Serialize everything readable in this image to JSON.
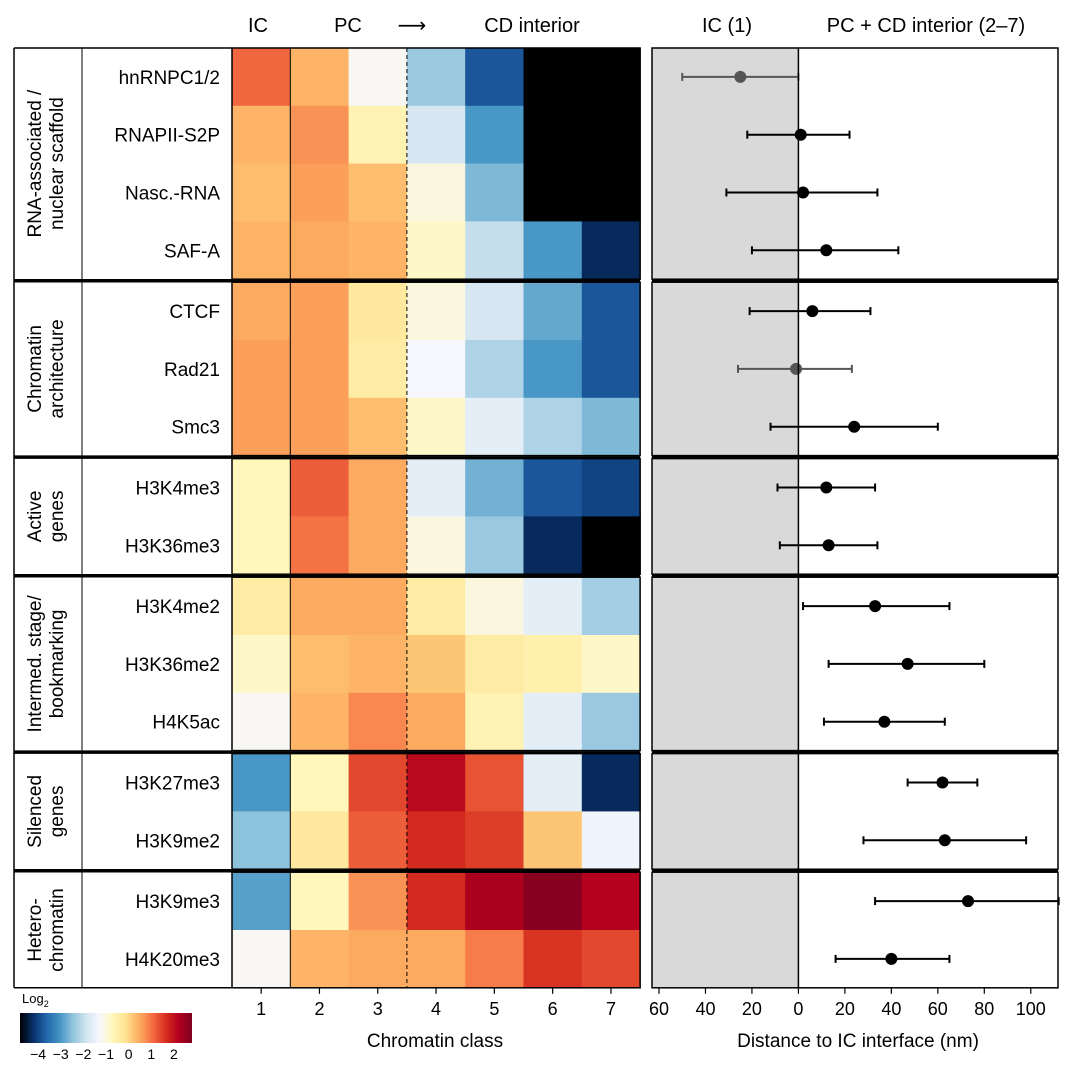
{
  "colors": {
    "scale": [
      "#000000",
      "#08306b",
      "#2166ac",
      "#4393c3",
      "#92c5de",
      "#d1e5f0",
      "#f7f7ff",
      "#fff7bc",
      "#fee391",
      "#fdae61",
      "#f46d43",
      "#d7301f",
      "#b2001e",
      "#7f0020"
    ],
    "panel_shade": "#d9d9d9",
    "point_dark": "#000000",
    "point_grey": "#555555"
  },
  "headers": {
    "ic": "IC",
    "pc": "PC",
    "arrow": "⟶",
    "cd": "CD interior",
    "right_ic": "IC (1)",
    "right_pc": "PC + CD interior (2–7)"
  },
  "legend": {
    "title_base": "Log",
    "title_sub": "2",
    "ticks": [
      "−4",
      "−3",
      "−2",
      "−1",
      "0",
      "1",
      "2"
    ],
    "tick_values": [
      -4,
      -3,
      -2,
      -1,
      0,
      1,
      2
    ],
    "min": -4.8,
    "max": 2.8
  },
  "chart_data": [
    {
      "type": "heatmap",
      "xlabel": "Chromatin class",
      "x_categories": [
        "1",
        "2",
        "3",
        "4",
        "5",
        "6",
        "7"
      ],
      "groups": [
        {
          "name_lines": [
            "RNA-associated /",
            "nuclear scaffold"
          ],
          "rows": [
            {
              "label": "hnRNPC1/2",
              "values": [
                1.1,
                0.4,
                -1.2,
                -2.4,
                -3.8,
                -5.0,
                -5.0
              ]
            },
            {
              "label": "RNAPII-S2P",
              "values": [
                0.4,
                0.7,
                -0.6,
                -1.8,
                -3.0,
                -4.8,
                -5.0
              ]
            },
            {
              "label": "Nasc.-RNA",
              "values": [
                0.3,
                0.6,
                0.3,
                -1.0,
                -2.6,
                -5.0,
                -5.0
              ]
            },
            {
              "label": "SAF-A",
              "values": [
                0.4,
                0.5,
                0.4,
                -0.8,
                -2.0,
                -3.0,
                -4.3
              ]
            }
          ]
        },
        {
          "name_lines": [
            "Chromatin",
            "architecture"
          ],
          "rows": [
            {
              "label": "CTCF",
              "values": [
                0.5,
                0.6,
                -0.3,
                -1.0,
                -1.8,
                -2.8,
                -3.8
              ]
            },
            {
              "label": "Rad21",
              "values": [
                0.6,
                0.6,
                -0.4,
                -1.3,
                -2.2,
                -3.0,
                -3.8
              ]
            },
            {
              "label": "Smc3",
              "values": [
                0.6,
                0.6,
                0.3,
                -0.8,
                -1.6,
                -2.2,
                -2.6
              ]
            }
          ]
        },
        {
          "name_lines": [
            "Active",
            "genes"
          ],
          "rows": [
            {
              "label": "H3K4me3",
              "values": [
                -0.7,
                1.2,
                0.5,
                -1.6,
                -2.7,
                -3.8,
                -4.0
              ]
            },
            {
              "label": "H3K36me3",
              "values": [
                -0.7,
                1.0,
                0.5,
                -1.0,
                -2.4,
                -4.3,
                -5.0
              ]
            }
          ]
        },
        {
          "name_lines": [
            "Intermed. stage/",
            "bookmarking"
          ],
          "rows": [
            {
              "label": "H3K4me2",
              "values": [
                -0.4,
                0.5,
                0.5,
                -0.4,
                -1.0,
                -1.6,
                -2.3
              ]
            },
            {
              "label": "H3K36me2",
              "values": [
                -0.8,
                0.3,
                0.4,
                0.2,
                -0.4,
                -0.5,
                -0.8
              ]
            },
            {
              "label": "H4K5ac",
              "values": [
                -1.2,
                0.4,
                0.8,
                0.5,
                -0.6,
                -1.6,
                -2.4
              ]
            }
          ]
        },
        {
          "name_lines": [
            "Silenced",
            "genes"
          ],
          "rows": [
            {
              "label": "H3K27me3",
              "values": [
                -3.0,
                -0.7,
                1.4,
                2.1,
                1.3,
                -1.6,
                -4.3
              ]
            },
            {
              "label": "H3K9me2",
              "values": [
                -2.5,
                -0.3,
                1.2,
                1.7,
                1.5,
                0.2,
                -1.4
              ]
            }
          ]
        },
        {
          "name_lines": [
            "Hetero-",
            "chromatin"
          ],
          "rows": [
            {
              "label": "H3K9me3",
              "values": [
                -2.9,
                -0.7,
                0.7,
                1.7,
                2.3,
                2.7,
                2.2
              ]
            },
            {
              "label": "H4K20me3",
              "values": [
                -1.2,
                0.4,
                0.5,
                0.5,
                0.9,
                1.6,
                1.4
              ]
            }
          ]
        }
      ]
    },
    {
      "type": "scatter",
      "xlabel": "Distance to IC interface (nm)",
      "xlim": [
        -65,
        112
      ],
      "x_ticks": [
        -60,
        -40,
        -20,
        0,
        20,
        40,
        60,
        80,
        100
      ],
      "x_tick_labels": [
        "60",
        "40",
        "20",
        "0",
        "20",
        "40",
        "60",
        "80",
        "100"
      ],
      "shaded_region": [
        -65,
        0
      ],
      "points": [
        {
          "label": "hnRNPC1/2",
          "x": -25,
          "lo": -50,
          "hi": 0,
          "tone": "grey"
        },
        {
          "label": "RNAPII-S2P",
          "x": 1,
          "lo": -22,
          "hi": 22,
          "tone": "dark"
        },
        {
          "label": "Nasc.-RNA",
          "x": 2,
          "lo": -31,
          "hi": 34,
          "tone": "dark"
        },
        {
          "label": "SAF-A",
          "x": 12,
          "lo": -20,
          "hi": 43,
          "tone": "dark"
        },
        {
          "label": "CTCF",
          "x": 6,
          "lo": -21,
          "hi": 31,
          "tone": "dark"
        },
        {
          "label": "Rad21",
          "x": -1,
          "lo": -26,
          "hi": 23,
          "tone": "grey"
        },
        {
          "label": "Smc3",
          "x": 24,
          "lo": -12,
          "hi": 60,
          "tone": "dark"
        },
        {
          "label": "H3K4me3",
          "x": 12,
          "lo": -9,
          "hi": 33,
          "tone": "dark"
        },
        {
          "label": "H3K36me3",
          "x": 13,
          "lo": -8,
          "hi": 34,
          "tone": "dark"
        },
        {
          "label": "H3K4me2",
          "x": 33,
          "lo": 2,
          "hi": 65,
          "tone": "dark"
        },
        {
          "label": "H3K36me2",
          "x": 47,
          "lo": 13,
          "hi": 80,
          "tone": "dark"
        },
        {
          "label": "H4K5ac",
          "x": 37,
          "lo": 11,
          "hi": 63,
          "tone": "dark"
        },
        {
          "label": "H3K27me3",
          "x": 62,
          "lo": 47,
          "hi": 77,
          "tone": "dark"
        },
        {
          "label": "H3K9me2",
          "x": 63,
          "lo": 28,
          "hi": 98,
          "tone": "dark"
        },
        {
          "label": "H3K9me3",
          "x": 73,
          "lo": 33,
          "hi": 112,
          "tone": "dark"
        },
        {
          "label": "H4K20me3",
          "x": 40,
          "lo": 16,
          "hi": 65,
          "tone": "dark"
        }
      ]
    }
  ]
}
